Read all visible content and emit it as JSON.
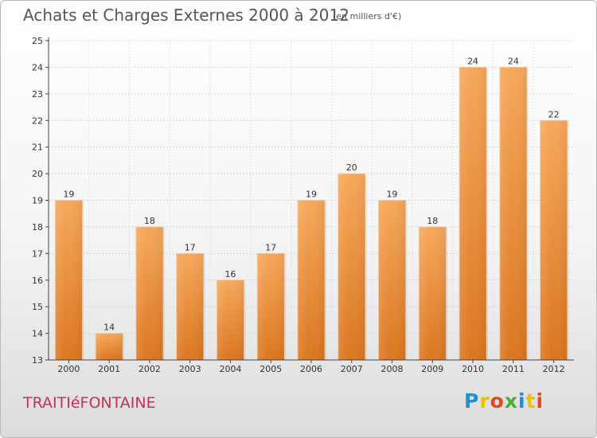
{
  "title": "Achats et Charges Externes 2000 à 2012",
  "subtitle": "(en milliers d'€)",
  "commune": "TRAITIéFONTAINE",
  "logo": {
    "letters": [
      "P",
      "r",
      "o",
      "x",
      "i",
      "t",
      "i"
    ],
    "colors": [
      "#1e8fd8",
      "#e9c300",
      "#e8451c",
      "#4fae2e",
      "#1e8fd8",
      "#e9c300",
      "#e8451c"
    ]
  },
  "colors": {
    "bar_light": "#f6a85a",
    "bar_dark": "#db7620",
    "title": "#555555",
    "commune": "#c8305a"
  },
  "chart_data": {
    "type": "bar",
    "title": "Achats et Charges Externes 2000 à 2012",
    "subtitle": "(en milliers d'€)",
    "categories": [
      "2000",
      "2001",
      "2002",
      "2003",
      "2004",
      "2005",
      "2006",
      "2007",
      "2008",
      "2009",
      "2010",
      "2011",
      "2012"
    ],
    "values": [
      19,
      14,
      18,
      17,
      16,
      17,
      19,
      20,
      19,
      18,
      24,
      24,
      22
    ],
    "data_labels": [
      "19",
      "14",
      "18",
      "17",
      "16",
      "17",
      "19",
      "20",
      "19",
      "18",
      "24",
      "24",
      "22"
    ],
    "ylim": [
      13,
      25
    ],
    "yticks": [
      13,
      14,
      15,
      16,
      17,
      18,
      19,
      20,
      21,
      22,
      23,
      24,
      25
    ],
    "grid": true,
    "legend": "none"
  }
}
